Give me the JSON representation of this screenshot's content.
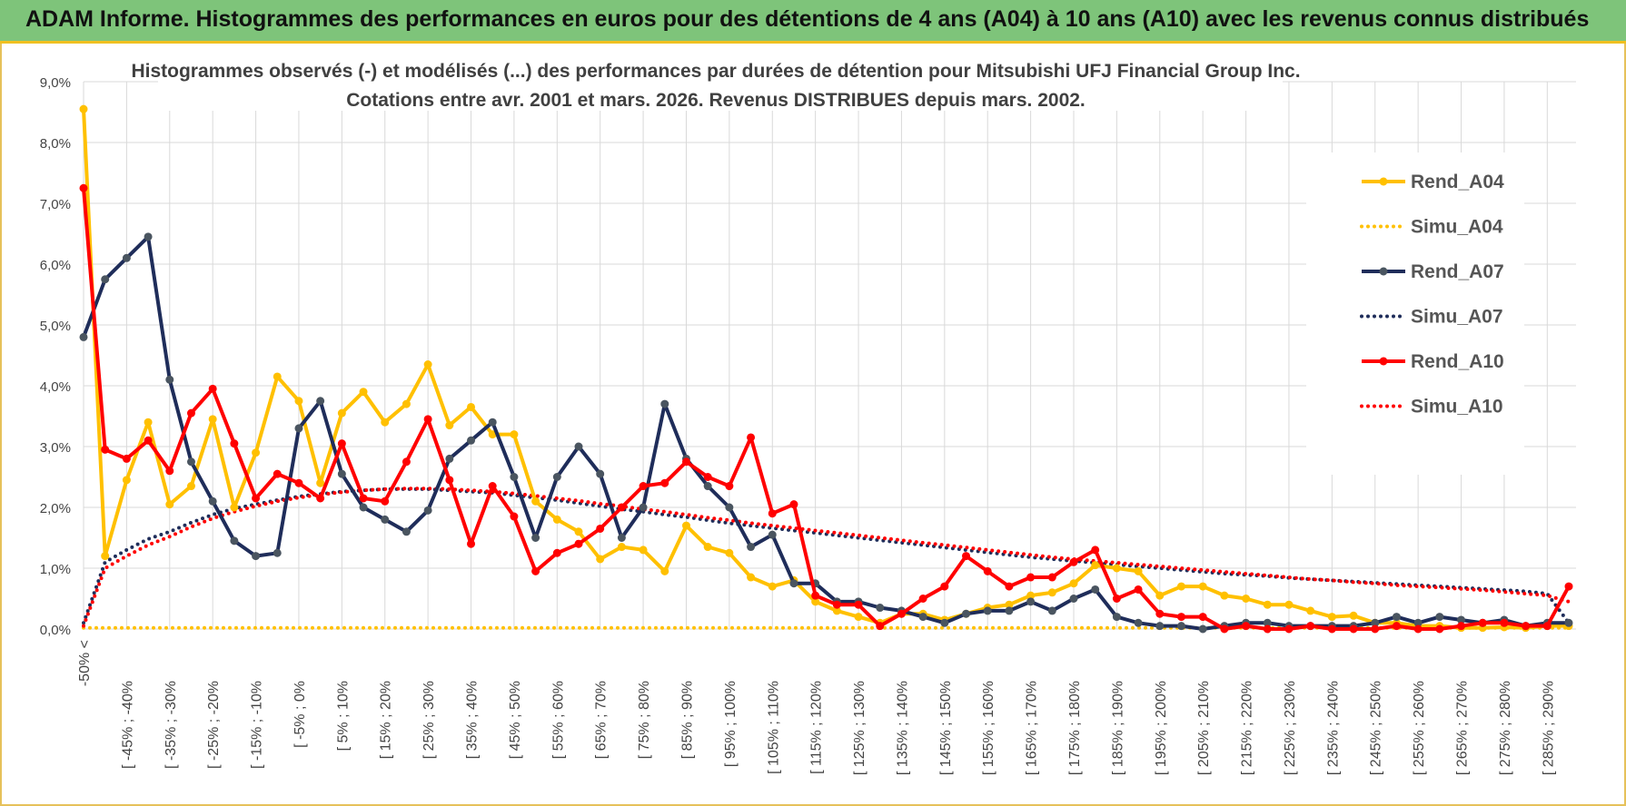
{
  "header": {
    "title": "ADAM Informe. Histogrammes des performances en euros pour des détentions de 4 ans (A04) à 10 ans (A10) avec les revenus connus distribués"
  },
  "chart_data": {
    "type": "line",
    "title": "Histogrammes observés (-) et modélisés (...) des performances par durées de détention pour Mitsubishi UFJ Financial Group Inc.",
    "subtitle": "Cotations entre avr. 2001 et mars. 2026. Revenus DISTRIBUES depuis mars. 2002.",
    "xlabel": "",
    "ylabel": "",
    "ylim": [
      0,
      9
    ],
    "yticks": [
      "0,0%",
      "1,0%",
      "2,0%",
      "3,0%",
      "4,0%",
      "5,0%",
      "6,0%",
      "7,0%",
      "8,0%",
      "9,0%"
    ],
    "grid": true,
    "legend_position": "right",
    "x_tick_labels": [
      "-50% <",
      "[ -45% ; -40%",
      "[ -35% ; -30%",
      "[ -25% ; -20%",
      "[ -15% ; -10%",
      "[ -5% ; 0%",
      "[ 5% ; 10%",
      "[ 15% ; 20%",
      "[ 25% ; 30%",
      "[ 35% ; 40%",
      "[ 45% ; 50%",
      "[ 55% ; 60%",
      "[ 65% ; 70%",
      "[ 75% ; 80%",
      "[ 85% ; 90%",
      "[ 95% ; 100%",
      "[ 105% ; 110%",
      "[ 115% ; 120%",
      "[ 125% ; 130%",
      "[ 135% ; 140%",
      "[ 145% ; 150%",
      "[ 155% ; 160%",
      "[ 165% ; 170%",
      "[ 175% ; 180%",
      "[ 185% ; 190%",
      "[ 195% ; 200%",
      "[ 205% ; 210%",
      "[ 215% ; 220%",
      "[ 225% ; 230%",
      "[ 235% ; 240%",
      "[ 245% ; 250%",
      "[ 255% ; 260%",
      "[ 265% ; 270%",
      "[ 275% ; 280%",
      "[ 285% ; 290%"
    ],
    "series": [
      {
        "name": "Rend_A04",
        "style": "solid",
        "color": "#FFC000",
        "values": [
          8.55,
          1.2,
          2.45,
          3.4,
          2.05,
          2.35,
          3.45,
          2.0,
          2.9,
          4.15,
          3.75,
          2.4,
          3.55,
          3.9,
          3.4,
          3.7,
          4.35,
          3.35,
          3.65,
          3.2,
          3.2,
          2.1,
          1.8,
          1.6,
          1.15,
          1.35,
          1.3,
          0.95,
          1.7,
          1.35,
          1.25,
          0.85,
          0.7,
          0.8,
          0.45,
          0.3,
          0.2,
          0.1,
          0.25,
          0.25,
          0.15,
          0.25,
          0.35,
          0.4,
          0.55,
          0.6,
          0.75,
          1.05,
          1.0,
          0.95,
          0.55,
          0.7,
          0.7,
          0.55,
          0.5,
          0.4,
          0.4,
          0.3,
          0.2,
          0.22,
          0.1,
          0.1,
          0.05,
          0.05,
          0.02,
          0.02,
          0.03,
          0.02,
          0.05,
          0.05
        ]
      },
      {
        "name": "Simu_A04",
        "style": "dotted",
        "color": "#FFC000",
        "values": [
          0.02,
          0.02,
          0.02,
          0.02,
          0.02,
          0.02,
          0.02,
          0.02,
          0.02,
          0.02,
          0.02,
          0.02,
          0.02,
          0.02,
          0.02,
          0.02,
          0.02,
          0.02,
          0.02,
          0.02,
          0.02,
          0.02,
          0.02,
          0.02,
          0.02,
          0.02,
          0.02,
          0.02,
          0.02,
          0.02,
          0.02,
          0.02,
          0.02,
          0.02,
          0.02,
          0.02,
          0.02,
          0.02,
          0.02,
          0.02,
          0.02,
          0.02,
          0.02,
          0.02,
          0.02,
          0.02,
          0.02,
          0.02,
          0.02,
          0.02,
          0.02,
          0.02,
          0.02,
          0.02,
          0.02,
          0.02,
          0.02,
          0.02,
          0.02,
          0.02,
          0.02,
          0.02,
          0.02,
          0.02,
          0.02,
          0.02,
          0.02,
          0.02,
          0.02,
          0.02
        ]
      },
      {
        "name": "Rend_A07",
        "style": "solid",
        "color": "#1F2D5A",
        "values": [
          4.8,
          5.75,
          6.1,
          6.45,
          4.1,
          2.75,
          2.1,
          1.45,
          1.2,
          1.25,
          3.3,
          3.75,
          2.55,
          2.0,
          1.8,
          1.6,
          1.95,
          2.8,
          3.1,
          3.4,
          2.5,
          1.5,
          2.5,
          3.0,
          2.55,
          1.5,
          2.0,
          3.7,
          2.8,
          2.35,
          2.0,
          1.35,
          1.55,
          0.75,
          0.75,
          0.45,
          0.45,
          0.35,
          0.3,
          0.2,
          0.1,
          0.25,
          0.3,
          0.3,
          0.45,
          0.3,
          0.5,
          0.65,
          0.2,
          0.1,
          0.05,
          0.05,
          0.0,
          0.05,
          0.1,
          0.1,
          0.05,
          0.05,
          0.05,
          0.05,
          0.1,
          0.2,
          0.1,
          0.2,
          0.15,
          0.1,
          0.15,
          0.05,
          0.1,
          0.1
        ]
      },
      {
        "name": "Simu_A07",
        "style": "dotted",
        "color": "#1F2D5A",
        "values": [
          0.1,
          1.1,
          1.3,
          1.48,
          1.6,
          1.75,
          1.88,
          1.98,
          2.05,
          2.12,
          2.18,
          2.22,
          2.26,
          2.28,
          2.3,
          2.3,
          2.3,
          2.28,
          2.26,
          2.24,
          2.2,
          2.16,
          2.12,
          2.07,
          2.02,
          1.97,
          1.93,
          1.88,
          1.84,
          1.79,
          1.74,
          1.7,
          1.66,
          1.62,
          1.58,
          1.54,
          1.5,
          1.46,
          1.42,
          1.38,
          1.34,
          1.3,
          1.26,
          1.22,
          1.18,
          1.15,
          1.12,
          1.09,
          1.06,
          1.03,
          1.0,
          0.97,
          0.94,
          0.91,
          0.89,
          0.87,
          0.84,
          0.82,
          0.8,
          0.78,
          0.76,
          0.74,
          0.72,
          0.7,
          0.68,
          0.66,
          0.64,
          0.62,
          0.58,
          0.1
        ]
      },
      {
        "name": "Rend_A10",
        "style": "solid",
        "color": "#FF0000",
        "values": [
          7.25,
          2.95,
          2.8,
          3.1,
          2.6,
          3.55,
          3.95,
          3.05,
          2.15,
          2.55,
          2.4,
          2.15,
          3.05,
          2.15,
          2.1,
          2.75,
          3.45,
          2.45,
          1.4,
          2.35,
          1.85,
          0.95,
          1.25,
          1.4,
          1.65,
          2.0,
          2.35,
          2.4,
          2.75,
          2.5,
          2.35,
          3.15,
          1.9,
          2.05,
          0.55,
          0.4,
          0.4,
          0.05,
          0.25,
          0.5,
          0.7,
          1.2,
          0.95,
          0.7,
          0.85,
          0.85,
          1.1,
          1.3,
          0.5,
          0.65,
          0.25,
          0.2,
          0.2,
          0.0,
          0.05,
          0.0,
          0.0,
          0.05,
          0.0,
          0.0,
          0.0,
          0.05,
          0.0,
          0.0,
          0.05,
          0.1,
          0.1,
          0.05,
          0.05,
          0.7
        ]
      },
      {
        "name": "Simu_A10",
        "style": "dotted",
        "color": "#FF0000",
        "values": [
          0.05,
          1.0,
          1.2,
          1.38,
          1.52,
          1.68,
          1.82,
          1.93,
          2.02,
          2.1,
          2.16,
          2.21,
          2.25,
          2.28,
          2.3,
          2.31,
          2.31,
          2.3,
          2.28,
          2.26,
          2.23,
          2.19,
          2.15,
          2.11,
          2.06,
          2.02,
          1.97,
          1.93,
          1.88,
          1.83,
          1.79,
          1.74,
          1.7,
          1.66,
          1.62,
          1.58,
          1.54,
          1.5,
          1.46,
          1.42,
          1.38,
          1.34,
          1.3,
          1.26,
          1.22,
          1.18,
          1.15,
          1.12,
          1.09,
          1.06,
          1.03,
          1.0,
          0.97,
          0.94,
          0.91,
          0.88,
          0.85,
          0.82,
          0.8,
          0.77,
          0.75,
          0.72,
          0.7,
          0.68,
          0.66,
          0.64,
          0.61,
          0.58,
          0.55,
          0.45
        ]
      }
    ]
  }
}
